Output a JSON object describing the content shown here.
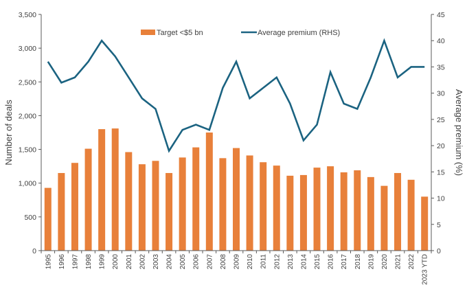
{
  "chart_data": {
    "type": "bar+line",
    "categories": [
      "1995",
      "1996",
      "1997",
      "1998",
      "1999",
      "2000",
      "2001",
      "2002",
      "2003",
      "2004",
      "2005",
      "2006",
      "2007",
      "2008",
      "2009",
      "2010",
      "2011",
      "2012",
      "2013",
      "2014",
      "2015",
      "2016",
      "2017",
      "2018",
      "2019",
      "2020",
      "2021",
      "2022",
      "2023 YTD"
    ],
    "series": [
      {
        "name": "Target <$5 bn",
        "type": "bar",
        "axis": "left",
        "color": "#E8803A",
        "values": [
          930,
          1150,
          1300,
          1510,
          1800,
          1810,
          1460,
          1280,
          1330,
          1150,
          1380,
          1530,
          1750,
          1370,
          1520,
          1410,
          1310,
          1260,
          1110,
          1120,
          1230,
          1250,
          1160,
          1190,
          1090,
          960,
          1150,
          1050,
          800
        ]
      },
      {
        "name": "Average premium (RHS)",
        "type": "line",
        "axis": "right",
        "color": "#1B6381",
        "values": [
          36,
          32,
          33,
          36,
          40,
          37,
          33,
          29,
          27,
          19,
          23,
          24,
          23,
          31,
          36,
          29,
          31,
          33,
          28,
          21,
          24,
          34,
          28,
          27,
          33,
          40,
          33,
          35,
          35
        ]
      }
    ],
    "ylabel": "Number of deals",
    "ylim": [
      0,
      3500
    ],
    "yticks": [
      "0",
      "500",
      "1,000",
      "1,500",
      "2,000",
      "2,500",
      "3,000",
      "3,500"
    ],
    "y2label": "Average premium (%)",
    "y2lim": [
      0,
      45
    ],
    "y2ticks": [
      "0",
      "5",
      "10",
      "15",
      "20",
      "25",
      "30",
      "35",
      "40",
      "45"
    ],
    "grid": false,
    "legend": "top-center"
  }
}
